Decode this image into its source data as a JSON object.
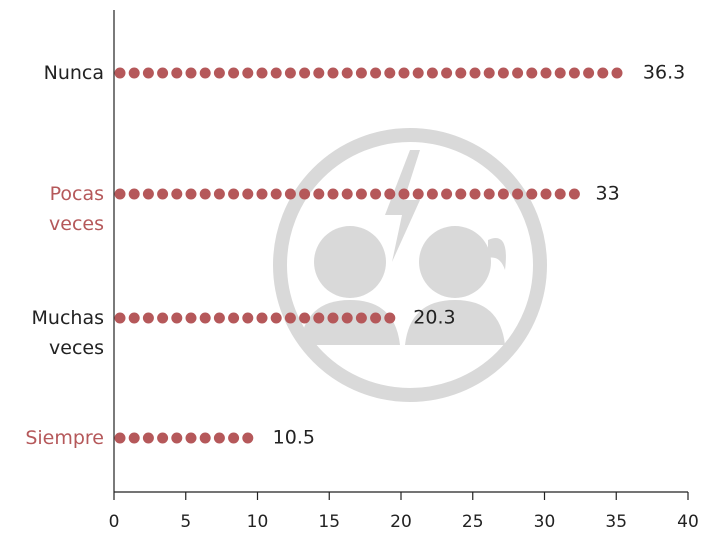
{
  "chart_data": {
    "type": "dotbar",
    "categories": [
      "Nunca",
      "Pocas veces",
      "Muchas veces",
      "Siempre"
    ],
    "category_colors": [
      "#222222",
      "#b5585a",
      "#222222",
      "#b5585a"
    ],
    "values": [
      36.3,
      33,
      20.3,
      10.5
    ],
    "color": "#b5585a",
    "xlim": [
      0,
      40
    ],
    "xticks": [
      0,
      5,
      10,
      15,
      20,
      25,
      30,
      35,
      40
    ]
  }
}
